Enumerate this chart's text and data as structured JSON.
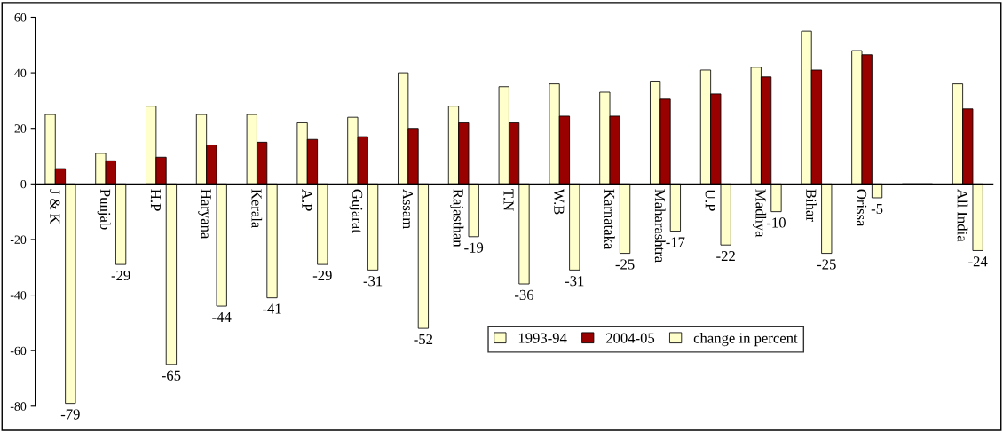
{
  "chart_data": {
    "type": "bar",
    "categories": [
      "J & K",
      "Punjab",
      "H.P",
      "Haryana",
      "Kerala",
      "A.P",
      "Gujarat",
      "Assam",
      "Rajasthan",
      "T.N",
      "W.B",
      "Karnataka",
      "Maharashtra",
      "U.P",
      "Madhya",
      "Bihar",
      "Orissa",
      null,
      "All India"
    ],
    "series": [
      {
        "name": "1993-94",
        "color": "#ffffcc",
        "values": [
          25,
          11,
          28,
          25,
          25,
          22,
          24,
          40,
          28,
          35,
          36,
          33,
          37,
          41,
          42,
          55,
          48,
          null,
          36
        ]
      },
      {
        "name": "2004-05",
        "color": "#990000",
        "values": [
          5.5,
          8.3,
          9.6,
          14,
          15,
          16,
          17,
          20,
          22,
          22,
          24.4,
          24.4,
          30.5,
          32.4,
          38.5,
          41,
          46.5,
          null,
          27
        ]
      },
      {
        "name": "change in percent",
        "color": "#ffffcc",
        "values": [
          -79,
          -29,
          -65,
          -44,
          -41,
          -29,
          -31,
          -52,
          -19,
          -36,
          -31,
          -25,
          -17,
          -22,
          -10,
          -25,
          -5,
          null,
          -24
        ],
        "value_labels": [
          "-79",
          "-29",
          "-65",
          "-44",
          "-41",
          "-29",
          "-31",
          "-52",
          "-19",
          "-36",
          "-31",
          "-25",
          "-17",
          "-22",
          "-10",
          "-25",
          "-5",
          null,
          "-24"
        ]
      }
    ],
    "ylim": [
      -80,
      60
    ],
    "yticks": [
      -80,
      -60,
      -40,
      -20,
      0,
      20,
      40,
      60
    ],
    "grid": false,
    "legend": "bottom right"
  }
}
